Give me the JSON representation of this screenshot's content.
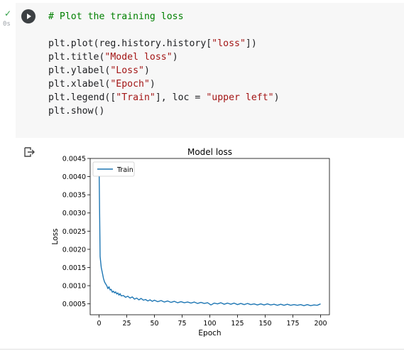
{
  "cell": {
    "status_icon": "check-icon",
    "exec_time": "0s",
    "run_icon": "play-icon",
    "code_lines": [
      {
        "parts": [
          {
            "t": "# Plot the training loss",
            "c": "comment"
          }
        ]
      },
      {
        "parts": []
      },
      {
        "parts": [
          {
            "t": "plt.plot(reg.history.history[",
            "c": ""
          },
          {
            "t": "\"loss\"",
            "c": "str"
          },
          {
            "t": "])",
            "c": ""
          }
        ]
      },
      {
        "parts": [
          {
            "t": "plt.title(",
            "c": ""
          },
          {
            "t": "\"Model loss\"",
            "c": "str"
          },
          {
            "t": ")",
            "c": ""
          }
        ]
      },
      {
        "parts": [
          {
            "t": "plt.ylabel(",
            "c": ""
          },
          {
            "t": "\"Loss\"",
            "c": "str"
          },
          {
            "t": ")",
            "c": ""
          }
        ]
      },
      {
        "parts": [
          {
            "t": "plt.xlabel(",
            "c": ""
          },
          {
            "t": "\"Epoch\"",
            "c": "str"
          },
          {
            "t": ")",
            "c": ""
          }
        ]
      },
      {
        "parts": [
          {
            "t": "plt.legend([",
            "c": ""
          },
          {
            "t": "\"Train\"",
            "c": "str"
          },
          {
            "t": "], loc = ",
            "c": ""
          },
          {
            "t": "\"upper left\"",
            "c": "str"
          },
          {
            "t": ")",
            "c": ""
          }
        ]
      },
      {
        "parts": [
          {
            "t": "plt.show()",
            "c": ""
          }
        ]
      }
    ]
  },
  "output": {
    "output_icon": "output-redirect-icon"
  },
  "chart_data": {
    "type": "line",
    "title": "Model loss",
    "xlabel": "Epoch",
    "ylabel": "Loss",
    "xlim": [
      -8,
      208
    ],
    "ylim": [
      0.0002,
      0.0045
    ],
    "xticks": [
      0,
      25,
      50,
      75,
      100,
      125,
      150,
      175,
      200
    ],
    "xtick_labels": [
      "0",
      "25",
      "50",
      "75",
      "100",
      "125",
      "150",
      "175",
      "200"
    ],
    "yticks": [
      0.0005,
      0.001,
      0.0015,
      0.002,
      0.0025,
      0.003,
      0.0035,
      0.004,
      0.0045
    ],
    "ytick_labels": [
      "0.0005",
      "0.0010",
      "0.0015",
      "0.0020",
      "0.0025",
      "0.0030",
      "0.0035",
      "0.0040",
      "0.0045"
    ],
    "legend": {
      "entries": [
        "Train"
      ],
      "placement": "upper left"
    },
    "grid": false,
    "line_color": "#1f77b4",
    "series": [
      {
        "name": "Train",
        "x": [
          0,
          1,
          2,
          3,
          4,
          5,
          6,
          7,
          8,
          9,
          10,
          11,
          12,
          13,
          14,
          15,
          16,
          17,
          18,
          19,
          20,
          22,
          24,
          26,
          28,
          30,
          32,
          34,
          36,
          38,
          40,
          42,
          44,
          46,
          48,
          50,
          53,
          56,
          59,
          62,
          65,
          68,
          71,
          74,
          77,
          80,
          83,
          86,
          89,
          92,
          95,
          98,
          101,
          104,
          107,
          110,
          113,
          116,
          119,
          122,
          125,
          128,
          131,
          134,
          137,
          140,
          143,
          146,
          149,
          152,
          155,
          158,
          161,
          164,
          167,
          170,
          173,
          176,
          179,
          182,
          185,
          188,
          191,
          194,
          197,
          200
        ],
        "y": [
          0.0044,
          0.0018,
          0.0015,
          0.00135,
          0.0012,
          0.0011,
          0.00105,
          0.001,
          0.00092,
          0.00097,
          0.00088,
          0.0009,
          0.00082,
          0.00085,
          0.0008,
          0.00083,
          0.00077,
          0.0008,
          0.00074,
          0.00078,
          0.00072,
          0.00073,
          0.00068,
          0.00071,
          0.00066,
          0.00069,
          0.00063,
          0.00066,
          0.00061,
          0.00065,
          0.0006,
          0.00062,
          0.00058,
          0.00061,
          0.00057,
          0.0006,
          0.00056,
          0.00059,
          0.00055,
          0.00058,
          0.00054,
          0.00057,
          0.00053,
          0.00056,
          0.00053,
          0.00055,
          0.00052,
          0.00055,
          0.00051,
          0.00054,
          0.00051,
          0.00053,
          0.00047,
          0.00052,
          0.0005,
          0.00053,
          0.00049,
          0.00052,
          0.00049,
          0.00052,
          0.00048,
          0.00051,
          0.00048,
          0.00051,
          0.00048,
          0.0005,
          0.00047,
          0.0005,
          0.00047,
          0.0005,
          0.00047,
          0.00049,
          0.00046,
          0.00049,
          0.00046,
          0.00049,
          0.00046,
          0.00048,
          0.00046,
          0.00048,
          0.00045,
          0.00048,
          0.00045,
          0.00047,
          0.00046,
          0.0005
        ]
      }
    ]
  }
}
